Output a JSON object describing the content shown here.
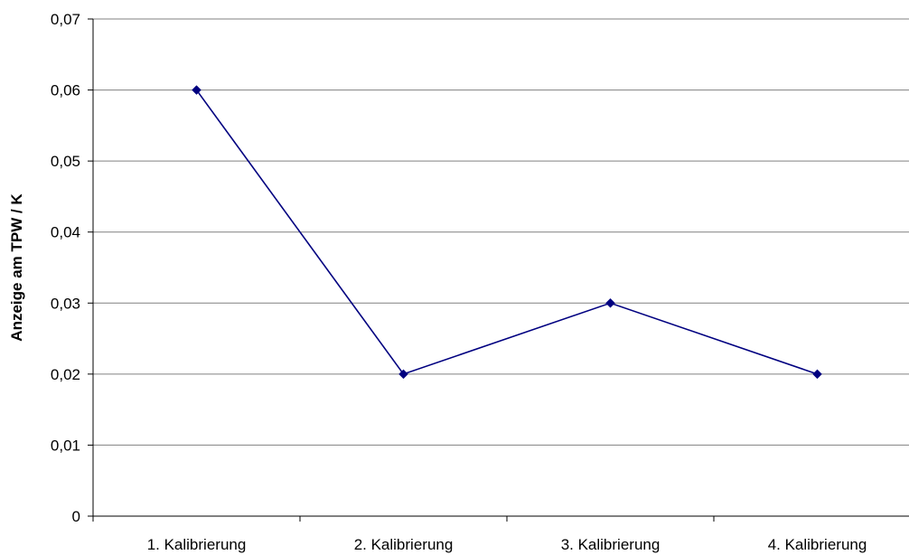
{
  "chart_data": {
    "type": "line",
    "categories": [
      "1. Kalibrierung",
      "2. Kalibrierung",
      "3. Kalibrierung",
      "4. Kalibrierung"
    ],
    "series": [
      {
        "values": [
          0.06,
          0.02,
          0.03,
          0.02
        ]
      }
    ],
    "title": "",
    "xlabel": "",
    "ylabel": "Anzeige am TPW / K",
    "ylim": [
      0,
      0.07
    ],
    "yticks": [
      0,
      0.01,
      0.02,
      0.03,
      0.04,
      0.05,
      0.06,
      0.07
    ],
    "ytick_labels": [
      "0",
      "0,01",
      "0,02",
      "0,03",
      "0,04",
      "0,05",
      "0,06",
      "0,07"
    ],
    "grid": "horizontal",
    "legend": "none",
    "colors": {
      "line": "#000080",
      "marker": "#000080",
      "grid": "#808080",
      "axis": "#000000"
    }
  }
}
